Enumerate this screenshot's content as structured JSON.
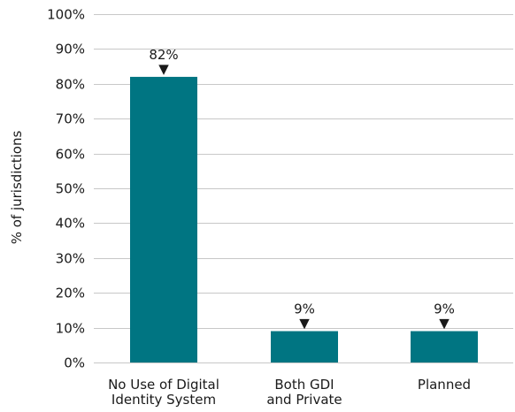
{
  "chart_data": {
    "type": "bar",
    "categories": [
      [
        "No Use of Digital",
        "Identity System"
      ],
      [
        "Both GDI",
        "and Private"
      ],
      [
        "Planned"
      ]
    ],
    "values": [
      82,
      9,
      9
    ],
    "data_labels": [
      "82%",
      "9%",
      "9%"
    ],
    "ylabel": "% of jurisdictions",
    "ylim": [
      0,
      100
    ],
    "yticks": [
      0,
      10,
      20,
      30,
      40,
      50,
      60,
      70,
      80,
      90,
      100
    ],
    "ytick_labels": [
      "0%",
      "10%",
      "20%",
      "30%",
      "40%",
      "50%",
      "60%",
      "70%",
      "80%",
      "90%",
      "100%"
    ],
    "grid": true,
    "legend": "none",
    "bar_color": "#007582",
    "data_label_marker": "▼"
  }
}
